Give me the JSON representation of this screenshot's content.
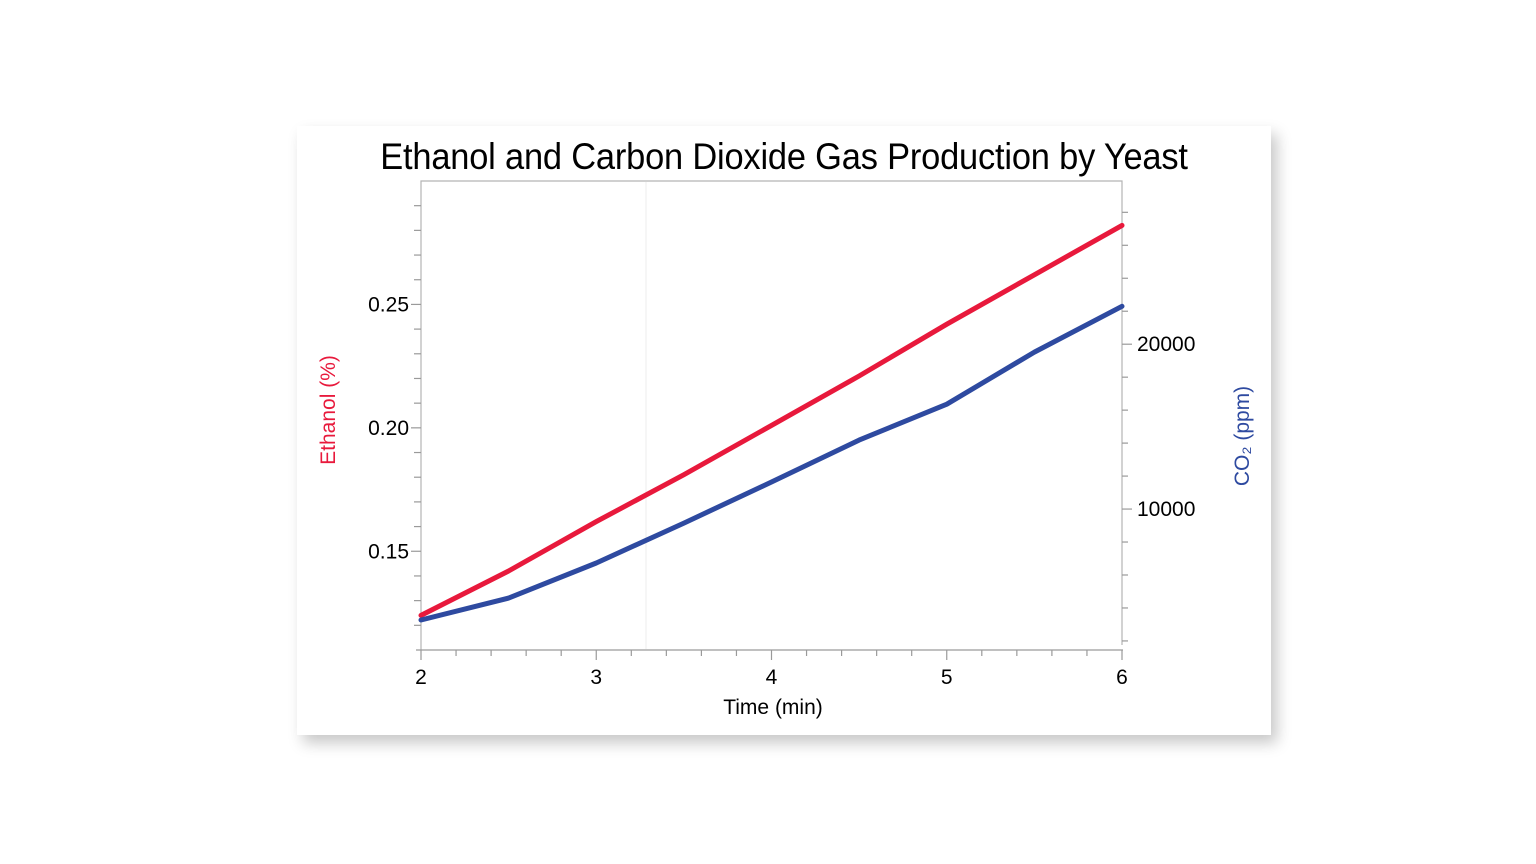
{
  "chart_data": {
    "type": "line",
    "title": "Ethanol and Carbon Dioxide Gas Production by Yeast",
    "xlabel": "Time  (min)",
    "ylabel": "Ethanol  (%)",
    "y2label": "CO₂ (ppm)",
    "xlim": [
      2,
      6
    ],
    "ylim": [
      0.11,
      0.3
    ],
    "y2lim": [
      1450,
      29900
    ],
    "x_ticks": [
      "2",
      "3",
      "4",
      "5",
      "6"
    ],
    "y_ticks": [
      "0.15",
      "0.20",
      "0.25"
    ],
    "y2_ticks": [
      "10000",
      "20000"
    ],
    "grid": false,
    "legend": "none (axis titles colored by series)",
    "x": [
      2.0,
      2.5,
      3.0,
      3.5,
      4.0,
      4.5,
      5.0,
      5.5,
      6.0
    ],
    "series": [
      {
        "name": "Ethanol (%)",
        "axis": "left",
        "color": "#e8193c",
        "values": [
          0.124,
          0.142,
          0.162,
          0.181,
          0.201,
          0.221,
          0.242,
          0.262,
          0.282
        ]
      },
      {
        "name": "CO₂ (ppm)",
        "axis": "right",
        "color": "#2e4aa0",
        "values": [
          3270,
          4600,
          6730,
          9150,
          11640,
          14180,
          16360,
          19520,
          22300
        ]
      }
    ],
    "annotations": [
      "faint vertical marker line at time ≈ 3.29 min"
    ]
  },
  "colors": {
    "ethanol": "#e8193c",
    "co2": "#2e4aa0",
    "axis": "#b4b4b4",
    "text": "#000000"
  }
}
